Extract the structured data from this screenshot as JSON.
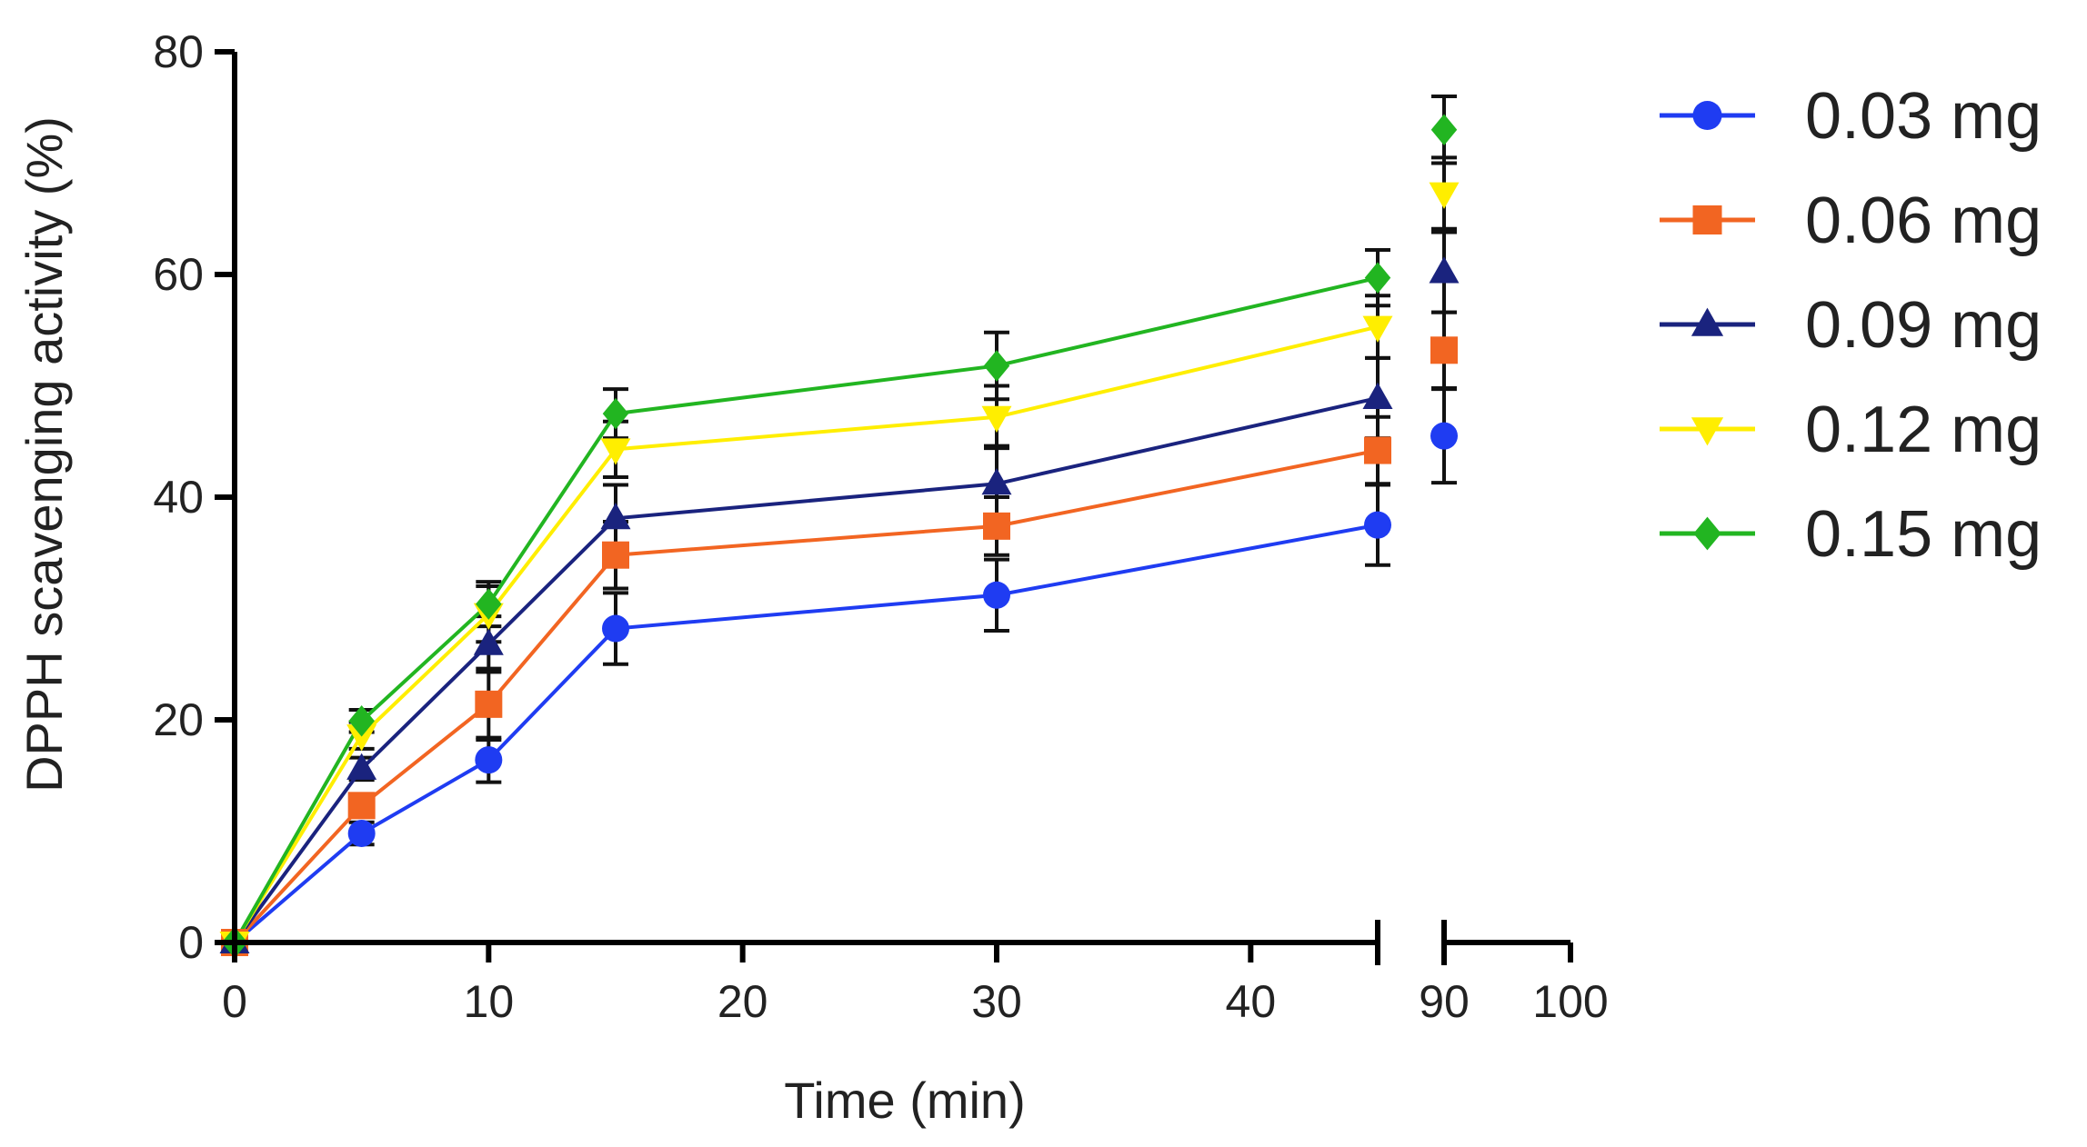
{
  "chart_data": {
    "type": "line",
    "title": "",
    "xlabel": "Time (min)",
    "ylabel": "DPPH scavenging activity (%)",
    "ylim": [
      0,
      80
    ],
    "yticks": [
      0,
      20,
      40,
      60,
      80
    ],
    "xaxis_segments": [
      {
        "range": [
          0,
          45
        ],
        "ticks": [
          0,
          10,
          20,
          30,
          40
        ],
        "tick_labels": [
          "0",
          "10",
          "20",
          "30",
          "40"
        ]
      },
      {
        "range": [
          90,
          100
        ],
        "ticks": [
          90,
          100
        ],
        "tick_labels": [
          "90",
          "100"
        ]
      }
    ],
    "x": [
      0,
      5,
      10,
      15,
      30,
      45,
      90
    ],
    "legend_position": "right",
    "series": [
      {
        "name": "0.03 mg",
        "color": "#1f3cf2",
        "marker": "circle",
        "values": [
          0,
          9.8,
          16.4,
          28.2,
          31.2,
          37.5,
          45.5
        ],
        "errors": [
          0,
          1.0,
          2.0,
          3.2,
          3.2,
          3.6,
          4.2
        ]
      },
      {
        "name": "0.06 mg",
        "color": "#f26522",
        "marker": "square",
        "values": [
          0,
          12.3,
          21.4,
          34.8,
          37.4,
          44.2,
          53.2
        ],
        "errors": [
          0,
          1.0,
          3.2,
          3.0,
          2.6,
          3.0,
          3.4
        ]
      },
      {
        "name": "0.09 mg",
        "color": "#1a237e",
        "marker": "triangle-up",
        "values": [
          0,
          15.6,
          26.8,
          38.1,
          41.2,
          48.9,
          60.2
        ],
        "errors": [
          0,
          1.0,
          2.5,
          3.0,
          3.4,
          3.6,
          3.6
        ]
      },
      {
        "name": "0.12 mg",
        "color": "#ffee00",
        "marker": "triangle-down",
        "values": [
          0,
          18.6,
          29.5,
          44.3,
          47.2,
          55.3,
          67.3
        ],
        "errors": [
          0,
          1.2,
          2.5,
          2.5,
          2.8,
          2.8,
          3.2
        ]
      },
      {
        "name": "0.15 mg",
        "color": "#22b521",
        "marker": "diamond",
        "values": [
          0,
          19.9,
          30.4,
          47.5,
          51.8,
          59.7,
          73.0
        ],
        "errors": [
          0,
          1.0,
          2.0,
          2.2,
          3.0,
          2.5,
          3.0
        ]
      }
    ]
  }
}
